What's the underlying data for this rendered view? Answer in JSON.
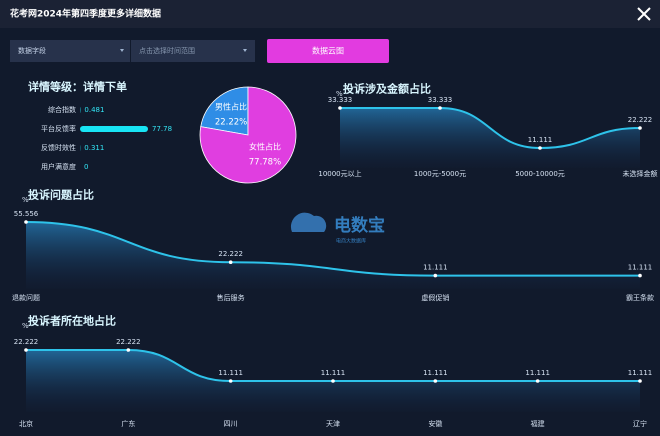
{
  "header": {
    "title": "花考网2024年第四季度更多详细数据"
  },
  "controls": {
    "field_select": "数据字段",
    "date_range": "点击选择时间范围",
    "button": "数据云图"
  },
  "watermark": {
    "name": "电数宝",
    "subtitle": "电商大数据库"
  },
  "chart_data": [
    {
      "type": "bar",
      "orientation": "horizontal",
      "title": "详情等级：详情下单",
      "categories": [
        "综合指数",
        "平台反馈率",
        "反馈时效性",
        "用户满意度"
      ],
      "values": [
        0.481,
        77.78,
        0.311,
        0
      ],
      "color": "#18e4f4"
    },
    {
      "type": "pie",
      "categories": [
        "男性占比",
        "女性占比"
      ],
      "values": [
        22.22,
        77.78
      ],
      "value_labels": [
        "22.22%",
        "77.78%"
      ],
      "colors": [
        "#2f8de6",
        "#e03ee0"
      ]
    },
    {
      "type": "line",
      "title": "投诉涉及金额占比",
      "y_label": "%",
      "categories": [
        "10000元以上",
        "1000元-5000元",
        "5000-10000元",
        "未选择金额"
      ],
      "values": [
        33.333,
        33.333,
        11.111,
        22.222
      ],
      "color": "#2ec3ea"
    },
    {
      "type": "line",
      "title": "投诉问题占比",
      "y_label": "%",
      "categories": [
        "退款问题",
        "售后服务",
        "虚假促销",
        "霸王条款"
      ],
      "values": [
        55.556,
        22.222,
        11.111,
        11.111
      ],
      "color": "#2ec3ea"
    },
    {
      "type": "line",
      "title": "投诉者所在地占比",
      "y_label": "%",
      "categories": [
        "北京",
        "广东",
        "四川",
        "天津",
        "安徽",
        "福建",
        "辽宁"
      ],
      "values": [
        22.222,
        22.222,
        11.111,
        11.111,
        11.111,
        11.111,
        11.111
      ],
      "color": "#2ec3ea"
    }
  ]
}
